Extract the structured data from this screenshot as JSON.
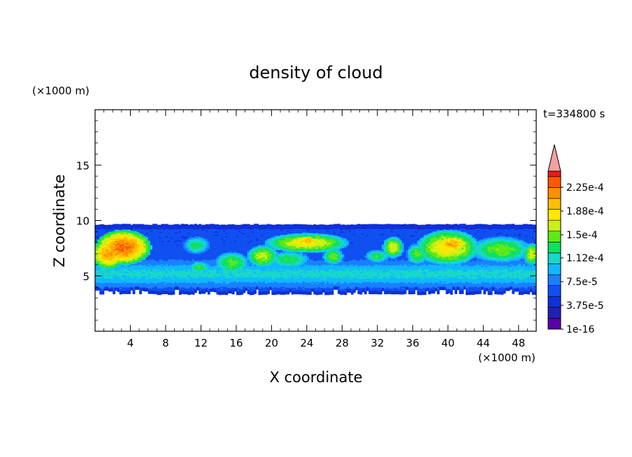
{
  "chart_data": {
    "type": "heatmap",
    "title": "density of cloud",
    "xlabel": "X coordinate",
    "ylabel": "Z coordinate",
    "x_unit": "(×1000 m)",
    "y_unit": "(×1000 m)",
    "time_label": "t=334800 s",
    "xlim": [
      0,
      50
    ],
    "ylim": [
      0,
      20
    ],
    "x_ticks": [
      4,
      8,
      12,
      16,
      20,
      24,
      28,
      32,
      36,
      40,
      44,
      48
    ],
    "y_ticks": [
      5,
      10,
      15
    ],
    "cloud_layer": {
      "bottom": 3.3,
      "top": 9.6
    },
    "colorbar": {
      "levels": [
        1e-16,
        1.875e-05,
        3.75e-05,
        5.625e-05,
        7.5e-05,
        9.375e-05,
        0.0001125,
        0.00013125,
        0.00015,
        0.00016875,
        0.0001875,
        0.00020625,
        0.000225,
        0.00024375
      ],
      "colors": [
        "#5a00a8",
        "#2020b8",
        "#1030d8",
        "#1050f0",
        "#1a80ff",
        "#10b8ff",
        "#18d8c8",
        "#10e060",
        "#60e818",
        "#c8f018",
        "#ffe800",
        "#ffc000",
        "#ff9000",
        "#ff5800",
        "#f01818"
      ],
      "tick_labels": [
        "1e-16",
        "3.75e-5",
        "7.5e-5",
        "1.12e-4",
        "1.5e-4",
        "1.88e-4",
        "2.25e-4"
      ],
      "extend_color": "#f4a0a0"
    },
    "features": [
      {
        "x": 3.2,
        "z": 7.6,
        "rx": 3.2,
        "rz": 1.6,
        "v": 0.00023
      },
      {
        "x": 1.5,
        "z": 7.0,
        "rx": 2.0,
        "rz": 1.4,
        "v": 0.00021
      },
      {
        "x": 8.8,
        "z": 6.0,
        "rx": 1.4,
        "rz": 1.8,
        "v": 4e-05
      },
      {
        "x": 11.5,
        "z": 7.8,
        "rx": 1.5,
        "rz": 0.8,
        "v": 0.000125
      },
      {
        "x": 11.8,
        "z": 5.8,
        "rx": 1.2,
        "rz": 0.6,
        "v": 0.00013
      },
      {
        "x": 15.5,
        "z": 6.2,
        "rx": 2.0,
        "rz": 1.0,
        "v": 0.00014
      },
      {
        "x": 19.0,
        "z": 6.8,
        "rx": 1.8,
        "rz": 1.0,
        "v": 0.00016
      },
      {
        "x": 24.0,
        "z": 8.0,
        "rx": 4.8,
        "rz": 0.9,
        "v": 0.000175
      },
      {
        "x": 24.0,
        "z": 8.2,
        "rx": 1.8,
        "rz": 0.5,
        "v": 0.0002
      },
      {
        "x": 22.0,
        "z": 6.5,
        "rx": 2.4,
        "rz": 0.8,
        "v": 0.00013
      },
      {
        "x": 27.0,
        "z": 6.8,
        "rx": 1.2,
        "rz": 0.8,
        "v": 0.000145
      },
      {
        "x": 33.8,
        "z": 7.6,
        "rx": 1.2,
        "rz": 1.0,
        "v": 0.000165
      },
      {
        "x": 32.0,
        "z": 6.8,
        "rx": 1.4,
        "rz": 0.6,
        "v": 0.00013
      },
      {
        "x": 40.0,
        "z": 7.6,
        "rx": 3.6,
        "rz": 1.6,
        "v": 0.00018
      },
      {
        "x": 40.5,
        "z": 7.9,
        "rx": 2.0,
        "rz": 0.8,
        "v": 0.00021
      },
      {
        "x": 46.0,
        "z": 7.4,
        "rx": 3.6,
        "rz": 1.2,
        "v": 0.000145
      },
      {
        "x": 49.5,
        "z": 7.0,
        "rx": 1.0,
        "rz": 1.0,
        "v": 0.000165
      },
      {
        "x": 36.5,
        "z": 7.0,
        "rx": 1.2,
        "rz": 1.0,
        "v": 0.00014
      },
      {
        "x": 16.5,
        "z": 8.3,
        "rx": 0.9,
        "rz": 0.7,
        "v": 4.5e-05
      }
    ]
  }
}
